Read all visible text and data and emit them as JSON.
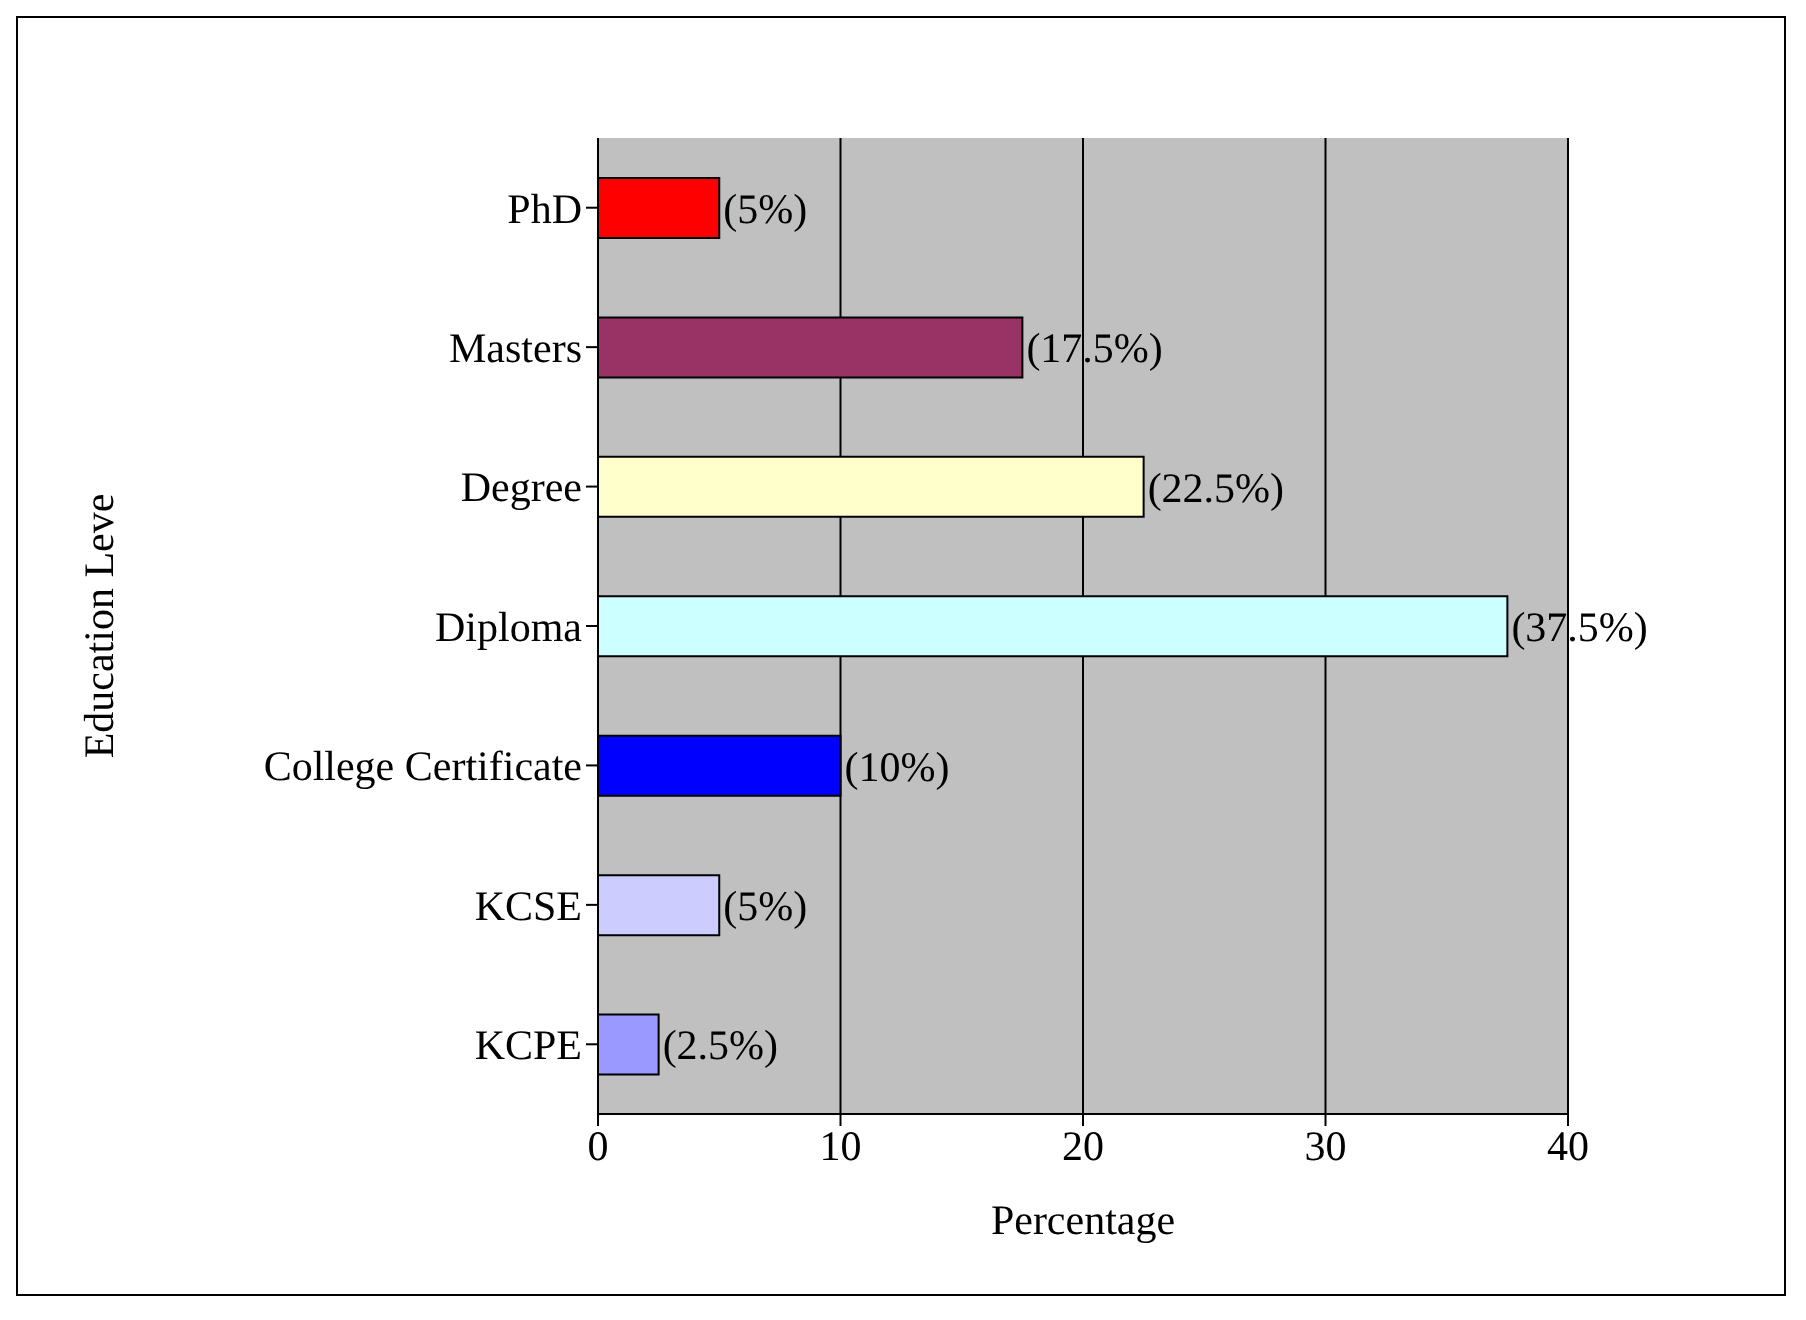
{
  "chart_data": {
    "type": "bar",
    "orientation": "horizontal",
    "ylabel": "Education Leve",
    "xlabel": "Percentage",
    "categories": [
      "PhD",
      "Masters",
      "Degree",
      "Diploma",
      "College Certificate",
      "KCSE",
      "KCPE"
    ],
    "values": [
      5,
      17.5,
      22.5,
      37.5,
      10,
      5,
      2.5
    ],
    "colors": [
      "#ff0000",
      "#993366",
      "#ffffcc",
      "#ccffff",
      "#0000ff",
      "#ccccff",
      "#9999ff"
    ],
    "value_labels": [
      "(5%)",
      "(17.5%)",
      "(22.5%)",
      "(37.5%)",
      "(10%)",
      "(5%)",
      "(2.5%)"
    ],
    "xlim": [
      0,
      40
    ],
    "xticks": [
      0,
      10,
      20,
      30,
      40
    ],
    "grid": "x"
  }
}
